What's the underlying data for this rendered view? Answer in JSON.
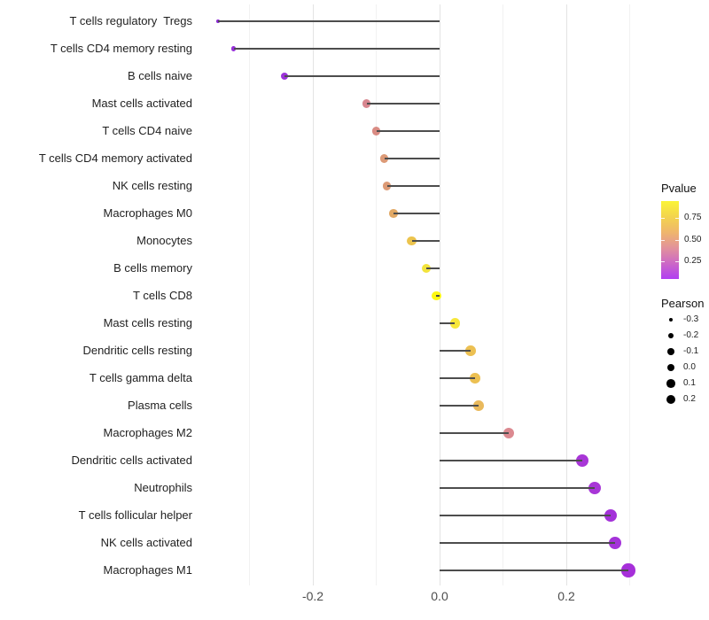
{
  "chart_data": {
    "type": "scatter",
    "variant": "lollipop",
    "title": "",
    "xlabel": "",
    "ylabel": "",
    "xlim": [
      -0.38,
      0.33
    ],
    "baseline_x": 0.0,
    "grid": true,
    "x_ticks_major": [
      -0.2,
      0.0,
      0.2
    ],
    "x_tick_labels": [
      "-0.2",
      "0.0",
      "0.2"
    ],
    "x_gridlines_minor": [
      -0.3,
      -0.1,
      0.1,
      0.3
    ],
    "stem_color": "#4d4d4d",
    "points": [
      {
        "label": "T cells regulatory  Tregs",
        "pearson": -0.35,
        "pvalue_est": 0.07,
        "color": "#8927d2",
        "r": 1.9
      },
      {
        "label": "T cells CD4 memory resting",
        "pearson": -0.325,
        "pvalue_est": 0.09,
        "color": "#962fd8",
        "r": 2.8
      },
      {
        "label": "B cells naive",
        "pearson": -0.245,
        "pvalue_est": 0.1,
        "color": "#9c33da",
        "r": 4.2
      },
      {
        "label": "Mast cells activated",
        "pearson": -0.115,
        "pvalue_est": 0.46,
        "color": "#d8868f",
        "r": 4.6
      },
      {
        "label": "T cells CD4 naive",
        "pearson": -0.1,
        "pvalue_est": 0.5,
        "color": "#d98b83",
        "r": 4.6
      },
      {
        "label": "T cells CD4 memory activated",
        "pearson": -0.087,
        "pvalue_est": 0.55,
        "color": "#dc9a77",
        "r": 4.7
      },
      {
        "label": "NK cells resting",
        "pearson": -0.083,
        "pvalue_est": 0.55,
        "color": "#dc9a75",
        "r": 4.7
      },
      {
        "label": "Macrophages M0",
        "pearson": -0.073,
        "pvalue_est": 0.6,
        "color": "#e2a966",
        "r": 4.8
      },
      {
        "label": "Monocytes",
        "pearson": -0.044,
        "pvalue_est": 0.7,
        "color": "#ecc44e",
        "r": 5.1
      },
      {
        "label": "B cells memory",
        "pearson": -0.021,
        "pvalue_est": 0.8,
        "color": "#f2e33c",
        "r": 5.3
      },
      {
        "label": "T cells CD8",
        "pearson": -0.005,
        "pvalue_est": 0.92,
        "color": "#fdf811",
        "r": 5.4
      },
      {
        "label": "Mast cells resting",
        "pearson": 0.024,
        "pvalue_est": 0.83,
        "color": "#f7e73a",
        "r": 5.6
      },
      {
        "label": "Dendritic cells resting",
        "pearson": 0.049,
        "pvalue_est": 0.67,
        "color": "#ecc052",
        "r": 5.8
      },
      {
        "label": "T cells gamma delta",
        "pearson": 0.056,
        "pvalue_est": 0.67,
        "color": "#ecc052",
        "r": 5.9
      },
      {
        "label": "Plasma cells",
        "pearson": 0.062,
        "pvalue_est": 0.64,
        "color": "#e9b95c",
        "r": 5.9
      },
      {
        "label": "Macrophages M2",
        "pearson": 0.109,
        "pvalue_est": 0.47,
        "color": "#db8990",
        "r": 6.3
      },
      {
        "label": "Dendritic cells activated",
        "pearson": 0.225,
        "pvalue_est": 0.12,
        "color": "#a836d7",
        "r": 7.1
      },
      {
        "label": "Neutrophils",
        "pearson": 0.245,
        "pvalue_est": 0.12,
        "color": "#a836d7",
        "r": 7.2
      },
      {
        "label": "T cells follicular helper",
        "pearson": 0.27,
        "pvalue_est": 0.1,
        "color": "#a432d9",
        "r": 7.4
      },
      {
        "label": "NK cells activated",
        "pearson": 0.277,
        "pvalue_est": 0.1,
        "color": "#a432d9",
        "r": 7.4
      },
      {
        "label": "Macrophages M1",
        "pearson": 0.298,
        "pvalue_est": 0.08,
        "color": "#a62fd9",
        "r": 7.6
      }
    ],
    "legends": {
      "pvalue": {
        "title": "Pvalue",
        "tick_labels": [
          "0.75",
          "0.50",
          "0.25"
        ],
        "tick_values": [
          0.75,
          0.5,
          0.25
        ],
        "bar_range_top_to_bottom": [
          0.95,
          0.04
        ],
        "gradient_top_to_bottom": [
          "#fbf438",
          "#f3d44d",
          "#efb66c",
          "#e2929b",
          "#cc68c6",
          "#b13ef2"
        ]
      },
      "pearson": {
        "title": "Pearson",
        "dot_color": "#000000",
        "entries": [
          {
            "label": "-0.3",
            "r": 2.4
          },
          {
            "label": "-0.2",
            "r": 3.2
          },
          {
            "label": "-0.1",
            "r": 3.9
          },
          {
            "label": "0.0",
            "r": 4.4
          },
          {
            "label": "0.1",
            "r": 4.9
          },
          {
            "label": "0.2",
            "r": 5.4
          }
        ]
      }
    }
  }
}
